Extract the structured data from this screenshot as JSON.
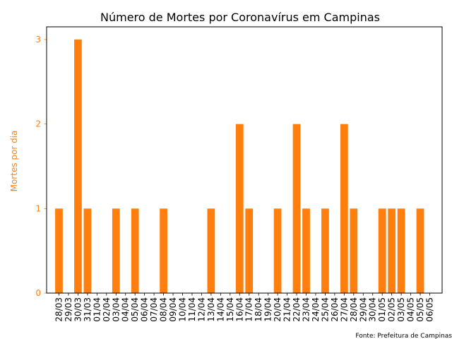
{
  "chart_data": {
    "type": "bar",
    "title": "Número de Mortes por Coronavírus em Campinas",
    "ylabel": "Mortes por dia",
    "xlabel": "",
    "source": "Fonte: Prefeitura de Campinas",
    "accent_color": "#ff7f0e",
    "ylim": [
      0,
      3.15
    ],
    "yticks": [
      0,
      1,
      2,
      3
    ],
    "grid": false,
    "legend": "none",
    "categories": [
      "28/03",
      "29/03",
      "30/03",
      "31/03",
      "01/04",
      "02/04",
      "03/04",
      "04/04",
      "05/04",
      "06/04",
      "07/04",
      "08/04",
      "09/04",
      "10/04",
      "11/04",
      "12/04",
      "13/04",
      "14/04",
      "15/04",
      "16/04",
      "17/04",
      "18/04",
      "19/04",
      "20/04",
      "21/04",
      "22/04",
      "23/04",
      "24/04",
      "25/04",
      "26/04",
      "27/04",
      "28/04",
      "29/04",
      "30/04",
      "01/05",
      "02/05",
      "03/05",
      "04/05",
      "05/05",
      "06/05"
    ],
    "values": [
      1,
      0,
      3,
      1,
      0,
      0,
      1,
      0,
      1,
      0,
      0,
      1,
      0,
      0,
      0,
      0,
      1,
      0,
      0,
      2,
      1,
      0,
      0,
      1,
      0,
      2,
      1,
      0,
      1,
      0,
      2,
      1,
      0,
      0,
      1,
      1,
      1,
      0,
      1,
      0
    ]
  }
}
